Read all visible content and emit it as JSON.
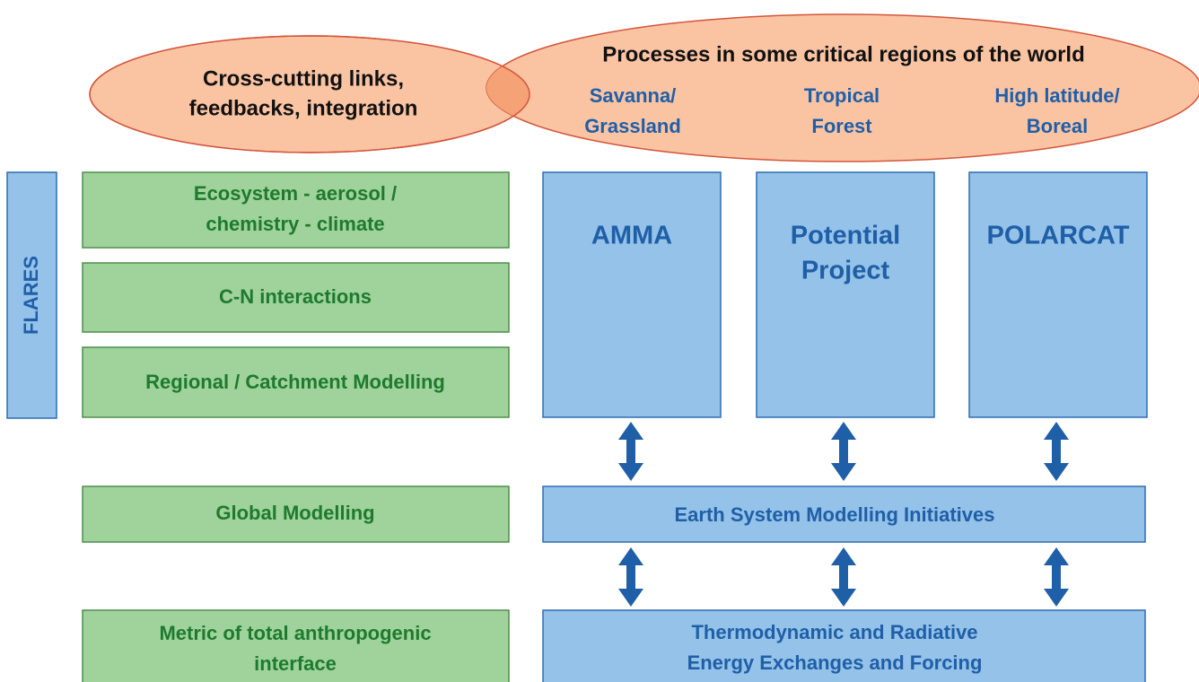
{
  "cross_cutting": {
    "lines": [
      "Cross-cutting links,",
      "feedbacks, integration"
    ]
  },
  "processes": {
    "title": "Processes in some critical regions of the world",
    "regions": [
      {
        "lines": [
          "Savanna/",
          "Grassland"
        ]
      },
      {
        "lines": [
          "Tropical",
          "Forest"
        ]
      },
      {
        "lines": [
          "High latitude/",
          "Boreal"
        ]
      }
    ]
  },
  "side_label": "FLARES",
  "themes": [
    {
      "lines": [
        "Ecosystem - aerosol /",
        "chemistry - climate"
      ]
    },
    {
      "lines": [
        "C-N interactions"
      ]
    },
    {
      "lines": [
        "Regional / Catchment Modelling"
      ]
    },
    {
      "lines": [
        "Global Modelling"
      ]
    },
    {
      "lines": [
        "Metric of total anthropogenic",
        "interface"
      ]
    }
  ],
  "projects": [
    {
      "lines": [
        "AMMA"
      ]
    },
    {
      "lines": [
        "Potential",
        "Project"
      ]
    },
    {
      "lines": [
        "POLARCAT"
      ]
    }
  ],
  "earth_system": "Earth System Modelling Initiatives",
  "exchanges": {
    "lines": [
      "Thermodynamic and Radiative",
      "Energy Exchanges and Forcing"
    ]
  }
}
